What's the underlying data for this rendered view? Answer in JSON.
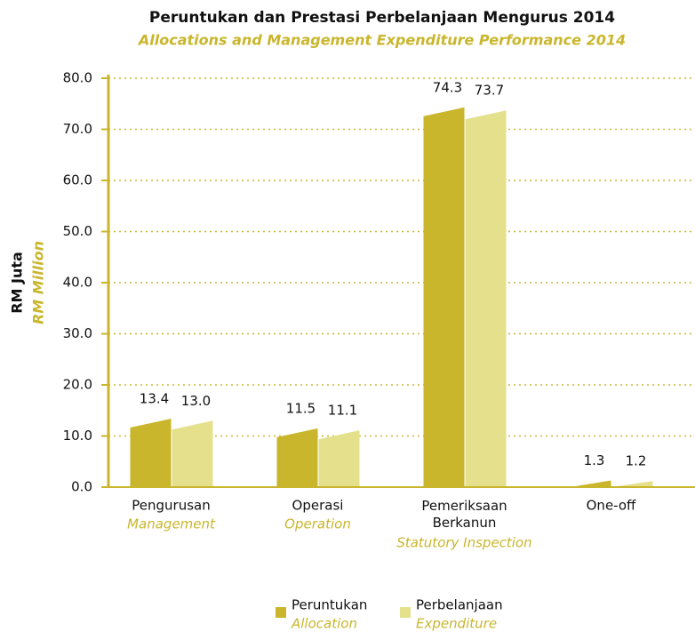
{
  "chart_data": {
    "type": "bar",
    "title": "Peruntukan dan Prestasi Perbelanjaan Mengurus 2014",
    "subtitle": "Allocations and Management Expenditure Performance 2014",
    "ylabel": "RM Juta",
    "ylabel_en": "RM Million",
    "categories": [
      "Pengurusan",
      "Operasi",
      "Pemeriksaan\nBerkanun",
      "One-off"
    ],
    "categories_en": [
      "Management",
      "Operation",
      "Statutory Inspection",
      null
    ],
    "series": [
      {
        "name": "Peruntukan",
        "name_en": "Allocation",
        "color": "#c9b62c",
        "values": [
          13.4,
          11.5,
          74.3,
          1.3
        ],
        "value_labels": [
          "13.4",
          "11.5",
          "74.3",
          "1.3"
        ]
      },
      {
        "name": "Perbelanjaan",
        "name_en": "Expenditure",
        "color": "#e4e08c",
        "values": [
          13.0,
          11.1,
          73.7,
          1.2
        ],
        "value_labels": [
          "13.0",
          "11.1",
          "73.7",
          "1.2"
        ]
      }
    ],
    "ylim": [
      0,
      80
    ],
    "yticks": [
      {
        "value": 0,
        "label": "0.0"
      },
      {
        "value": 10,
        "label": "10.0"
      },
      {
        "value": 20,
        "label": "20.0"
      },
      {
        "value": 30,
        "label": "30.0"
      },
      {
        "value": 40,
        "label": "40.0"
      },
      {
        "value": 50,
        "label": "50.0"
      },
      {
        "value": 60,
        "label": "60.0"
      },
      {
        "value": 70,
        "label": "70.0"
      },
      {
        "value": 80,
        "label": "80.0"
      }
    ],
    "grid": true,
    "axis_color": "#c9b62c"
  }
}
